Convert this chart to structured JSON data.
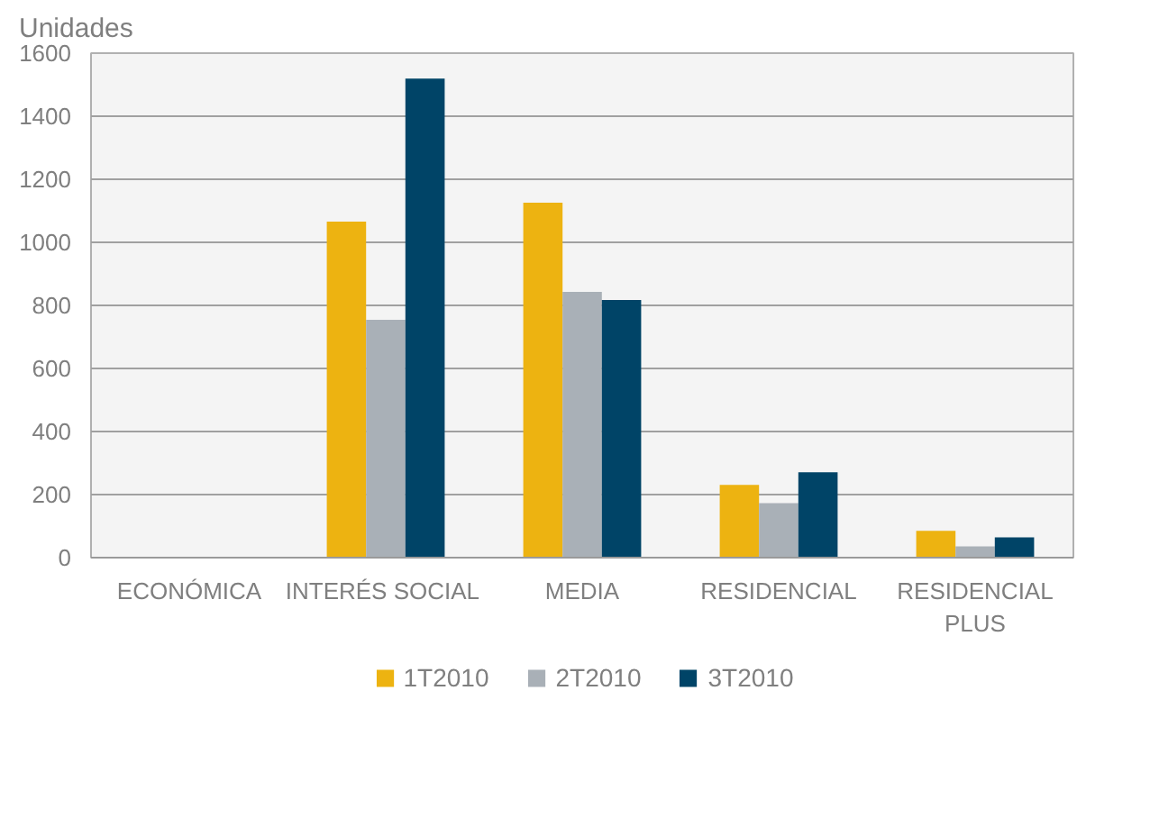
{
  "chart_data": {
    "type": "bar",
    "ylabel": "Unidades",
    "categories": [
      "ECONÓMICA",
      "INTERÉS  SOCIAL",
      "MEDIA",
      "RESIDENCIAL",
      "RESIDENCIAL\nPLUS"
    ],
    "series": [
      {
        "name": "1T2010",
        "color": "#edb311",
        "values": [
          null,
          1066,
          1126,
          231,
          85
        ]
      },
      {
        "name": "2T2010",
        "color": "#a9b0b7",
        "values": [
          null,
          754,
          843,
          173,
          36
        ]
      },
      {
        "name": "3T2010",
        "color": "#004467",
        "values": [
          null,
          1519,
          817,
          271,
          64
        ]
      }
    ],
    "ylim": [
      0,
      1600
    ],
    "yticks": [
      0,
      200,
      400,
      600,
      800,
      1000,
      1200,
      1400,
      1600
    ],
    "grid": "y",
    "legend": "bottom"
  }
}
